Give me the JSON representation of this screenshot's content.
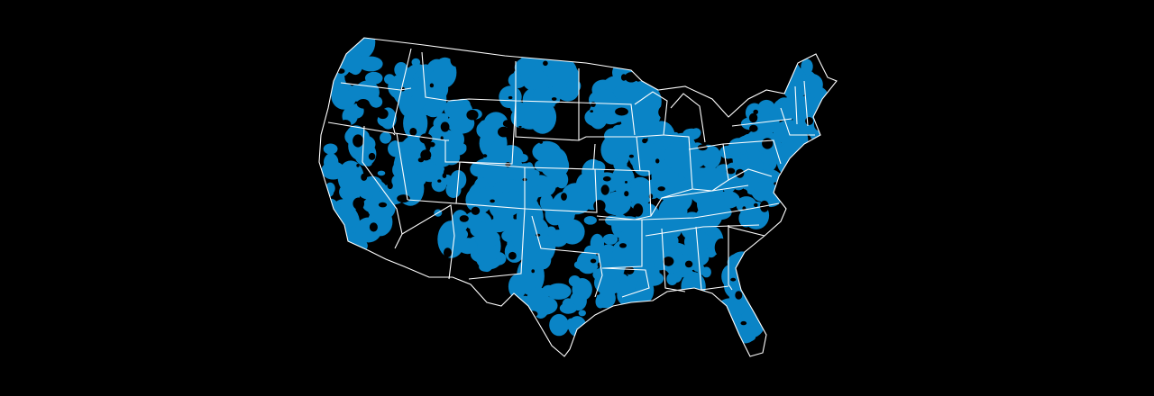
{
  "map": {
    "region": "contiguous-united-states",
    "background_color": "#000000",
    "coverage_color": "#0a84c6",
    "border_color": "#ffffff",
    "has_text_labels": false,
    "has_legend": false
  }
}
